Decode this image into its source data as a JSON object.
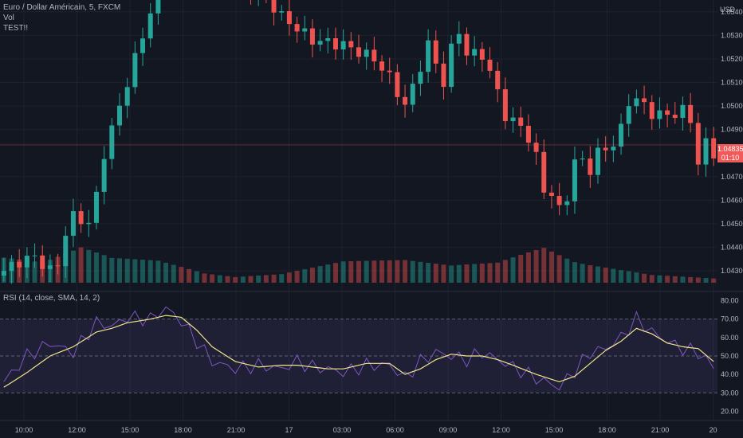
{
  "legend": {
    "symbol": "Euro / Dollar Américain, 5, FXCM",
    "line2": "Vol",
    "line3": "TEST!!"
  },
  "price_axis": {
    "currency": "USD",
    "ticks": [
      "1.05400",
      "1.05300",
      "1.05200",
      "1.05100",
      "1.05000",
      "1.04900",
      "1.04700",
      "1.04600",
      "1.04500",
      "1.04400",
      "1.04300"
    ],
    "last_price": "1.04835",
    "countdown": "01:10"
  },
  "rsi": {
    "label": "RSI (14, close, SMA, 14, 2)",
    "ticks": [
      "80.00",
      "70.00",
      "60.00",
      "50.00",
      "40.00",
      "30.00",
      "20.00"
    ],
    "upper_band": 70,
    "lower_band": 30,
    "mid_line": 50
  },
  "time_axis": {
    "labels": [
      "10:00",
      "12:00",
      "15:00",
      "18:00",
      "21:00",
      "17",
      "03:00",
      "06:00",
      "09:00",
      "12:00",
      "15:00",
      "18:00",
      "21:00",
      "20"
    ]
  },
  "colors": {
    "background": "#131722",
    "up": "#26a69a",
    "down": "#ef5350",
    "rsi_line": "#7e57c2",
    "rsi_ma": "#f0e68c",
    "band_fill": "#7e57c2",
    "last_price_tag": "#f05a5a"
  },
  "chart_data": {
    "type": "candlestick",
    "price_anchors": [
      [
        0,
        1.043
      ],
      [
        2,
        1.0434
      ],
      [
        4,
        1.0436
      ],
      [
        6,
        1.043
      ],
      [
        7,
        1.0433
      ],
      [
        8,
        1.0446
      ],
      [
        9,
        1.0453
      ],
      [
        10,
        1.0452
      ],
      [
        11,
        1.045
      ],
      [
        12,
        1.0462
      ],
      [
        13,
        1.048
      ],
      [
        15,
        1.05
      ],
      [
        17,
        1.052
      ],
      [
        19,
        1.054
      ],
      [
        20,
        1.055
      ],
      [
        21,
        1.056
      ],
      [
        22,
        1.056
      ],
      [
        26,
        1.0556
      ],
      [
        28,
        1.0556
      ],
      [
        30,
        1.0553
      ],
      [
        32,
        1.055
      ],
      [
        34,
        1.0546
      ],
      [
        36,
        1.0538
      ],
      [
        38,
        1.0533
      ],
      [
        40,
        1.0528
      ],
      [
        42,
        1.0527
      ],
      [
        44,
        1.0526
      ],
      [
        46,
        1.0523
      ],
      [
        48,
        1.052
      ],
      [
        50,
        1.0512
      ],
      [
        52,
        1.05
      ],
      [
        53,
        1.0508
      ],
      [
        55,
        1.0526
      ],
      [
        56,
        1.0518
      ],
      [
        57,
        1.051
      ],
      [
        58,
        1.0524
      ],
      [
        59,
        1.0532
      ],
      [
        60,
        1.0522
      ],
      [
        62,
        1.0522
      ],
      [
        63,
        1.0514
      ],
      [
        64,
        1.0506
      ],
      [
        65,
        1.0496
      ],
      [
        66,
        1.0493
      ],
      [
        67,
        1.0492
      ],
      [
        68,
        1.0486
      ],
      [
        69,
        1.0478
      ],
      [
        70,
        1.0465
      ],
      [
        71,
        1.0462
      ],
      [
        72,
        1.0456
      ],
      [
        73,
        1.0462
      ],
      [
        74,
        1.0476
      ],
      [
        75,
        1.0477
      ],
      [
        76,
        1.0473
      ],
      [
        77,
        1.048
      ],
      [
        78,
        1.0482
      ],
      [
        79,
        1.0484
      ],
      [
        80,
        1.049
      ],
      [
        81,
        1.0502
      ],
      [
        82,
        1.0503
      ],
      [
        84,
        1.0497
      ],
      [
        86,
        1.0496
      ],
      [
        88,
        1.0498
      ],
      [
        89,
        1.0494
      ],
      [
        90,
        1.0476
      ],
      [
        91,
        1.0484
      ],
      [
        92,
        1.048
      ]
    ],
    "volume_anchors": [
      [
        0,
        0.75
      ],
      [
        5,
        0.55
      ],
      [
        10,
        0.9
      ],
      [
        14,
        0.6
      ],
      [
        20,
        0.5
      ],
      [
        26,
        0.2
      ],
      [
        30,
        0.12
      ],
      [
        36,
        0.18
      ],
      [
        44,
        0.45
      ],
      [
        52,
        0.5
      ],
      [
        58,
        0.4
      ],
      [
        64,
        0.5
      ],
      [
        70,
        0.95
      ],
      [
        74,
        0.6
      ],
      [
        80,
        0.35
      ],
      [
        84,
        0.2
      ],
      [
        88,
        0.15
      ],
      [
        92,
        0.1
      ]
    ],
    "rsi_anchors": [
      [
        0,
        36
      ],
      [
        3,
        50
      ],
      [
        6,
        57
      ],
      [
        9,
        52
      ],
      [
        12,
        68
      ],
      [
        14,
        66
      ],
      [
        16,
        71
      ],
      [
        19,
        70
      ],
      [
        21,
        76
      ],
      [
        23,
        69
      ],
      [
        25,
        58
      ],
      [
        27,
        47
      ],
      [
        30,
        43
      ],
      [
        33,
        45
      ],
      [
        36,
        43
      ],
      [
        38,
        47
      ],
      [
        40,
        44
      ],
      [
        42,
        43
      ],
      [
        44,
        41
      ],
      [
        47,
        45
      ],
      [
        50,
        45
      ],
      [
        52,
        38
      ],
      [
        54,
        47
      ],
      [
        56,
        52
      ],
      [
        58,
        50
      ],
      [
        60,
        48
      ],
      [
        62,
        52
      ],
      [
        64,
        48
      ],
      [
        66,
        44
      ],
      [
        69,
        38
      ],
      [
        72,
        33
      ],
      [
        74,
        42
      ],
      [
        76,
        52
      ],
      [
        78,
        54
      ],
      [
        80,
        60
      ],
      [
        82,
        70
      ],
      [
        84,
        63
      ],
      [
        86,
        58
      ],
      [
        88,
        54
      ],
      [
        90,
        52
      ],
      [
        92,
        44
      ]
    ],
    "rsi_ma_anchors": [
      [
        0,
        33
      ],
      [
        3,
        41
      ],
      [
        6,
        50
      ],
      [
        9,
        55
      ],
      [
        12,
        63
      ],
      [
        14,
        65
      ],
      [
        16,
        68
      ],
      [
        19,
        70
      ],
      [
        21,
        72
      ],
      [
        23,
        71
      ],
      [
        25,
        64
      ],
      [
        27,
        55
      ],
      [
        30,
        47
      ],
      [
        33,
        44
      ],
      [
        36,
        45
      ],
      [
        38,
        45
      ],
      [
        40,
        44
      ],
      [
        42,
        43
      ],
      [
        44,
        43
      ],
      [
        47,
        46
      ],
      [
        50,
        46
      ],
      [
        52,
        40
      ],
      [
        54,
        43
      ],
      [
        56,
        48
      ],
      [
        58,
        51
      ],
      [
        60,
        50
      ],
      [
        62,
        50
      ],
      [
        64,
        48
      ],
      [
        66,
        45
      ],
      [
        69,
        40
      ],
      [
        72,
        36
      ],
      [
        74,
        39
      ],
      [
        76,
        46
      ],
      [
        78,
        53
      ],
      [
        80,
        58
      ],
      [
        82,
        65
      ],
      [
        84,
        62
      ],
      [
        86,
        57
      ],
      [
        88,
        55
      ],
      [
        90,
        54
      ],
      [
        92,
        47
      ]
    ],
    "bars": 93,
    "price_range": [
      1.0425,
      1.0545
    ],
    "rsi_range": [
      15,
      85
    ],
    "current_price": 1.04835
  }
}
